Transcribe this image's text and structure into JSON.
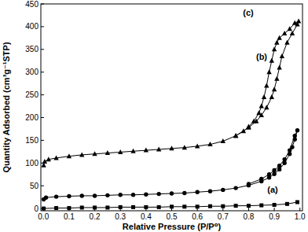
{
  "chart_data": {
    "type": "line",
    "x_label": "Relative Pressure (P/P⁰)",
    "y_label": "Quantity Adsorbed (cm³g⁻¹STP)",
    "xlim": [
      -0.01,
      1.01
    ],
    "ylim": [
      -5,
      450
    ],
    "xticks": [
      {
        "value": 0,
        "label": "0.0"
      },
      0.1,
      0.2,
      0.3,
      0.4,
      0.5,
      0.6,
      0.7,
      0.8,
      0.9,
      {
        "value": 1,
        "label": "1.0"
      }
    ],
    "yticks": [
      0,
      50,
      100,
      150,
      200,
      250,
      300,
      350,
      400,
      450
    ],
    "grid": false,
    "series": [
      {
        "name": "(a)",
        "color": "#000000",
        "marker": "square",
        "x": [
          0.001,
          0.05,
          0.1,
          0.15,
          0.2,
          0.25,
          0.3,
          0.35,
          0.4,
          0.45,
          0.5,
          0.55,
          0.6,
          0.65,
          0.7,
          0.75,
          0.8,
          0.85,
          0.9,
          0.95,
          0.99
        ],
        "values": [
          0,
          1,
          1,
          2,
          2,
          2,
          3,
          3,
          3,
          3,
          4,
          4,
          4,
          5,
          5,
          6,
          6,
          7,
          8,
          10,
          14
        ]
      },
      {
        "name": "(b)",
        "color": "#000000",
        "marker": "circle",
        "x": [
          0.001,
          0.01,
          0.05,
          0.1,
          0.15,
          0.2,
          0.25,
          0.3,
          0.35,
          0.4,
          0.45,
          0.5,
          0.55,
          0.6,
          0.65,
          0.7,
          0.75,
          0.8,
          0.85,
          0.88,
          0.9,
          0.92,
          0.94,
          0.96,
          0.97,
          0.98,
          0.99,
          0.98,
          0.96,
          0.94,
          0.92,
          0.9,
          0.88,
          0.85,
          0.8
        ],
        "values": [
          20,
          24,
          26,
          27,
          28,
          28,
          29,
          30,
          30,
          31,
          32,
          33,
          34,
          36,
          38,
          41,
          45,
          51,
          60,
          68,
          76,
          86,
          100,
          120,
          135,
          152,
          172,
          160,
          128,
          108,
          94,
          84,
          75,
          65,
          54
        ]
      },
      {
        "name": "(c)",
        "color": "#000000",
        "marker": "triangle",
        "x": [
          0.001,
          0.005,
          0.02,
          0.05,
          0.1,
          0.15,
          0.2,
          0.25,
          0.3,
          0.35,
          0.4,
          0.45,
          0.5,
          0.55,
          0.6,
          0.65,
          0.7,
          0.75,
          0.8,
          0.83,
          0.85,
          0.87,
          0.89,
          0.9,
          0.91,
          0.92,
          0.93,
          0.95,
          0.97,
          0.99,
          0.995,
          0.98,
          0.96,
          0.94,
          0.92,
          0.91,
          0.9,
          0.89,
          0.88,
          0.87,
          0.86,
          0.85,
          0.84,
          0.82,
          0.8,
          0.78,
          0.75
        ],
        "values": [
          95,
          103,
          108,
          111,
          115,
          118,
          120,
          122,
          124,
          126,
          128,
          130,
          132,
          134,
          137,
          141,
          148,
          160,
          178,
          192,
          205,
          222,
          245,
          262,
          285,
          310,
          335,
          365,
          385,
          405,
          412,
          408,
          395,
          385,
          375,
          365,
          350,
          325,
          300,
          270,
          245,
          225,
          210,
          192,
          180,
          170,
          160
        ]
      }
    ]
  }
}
